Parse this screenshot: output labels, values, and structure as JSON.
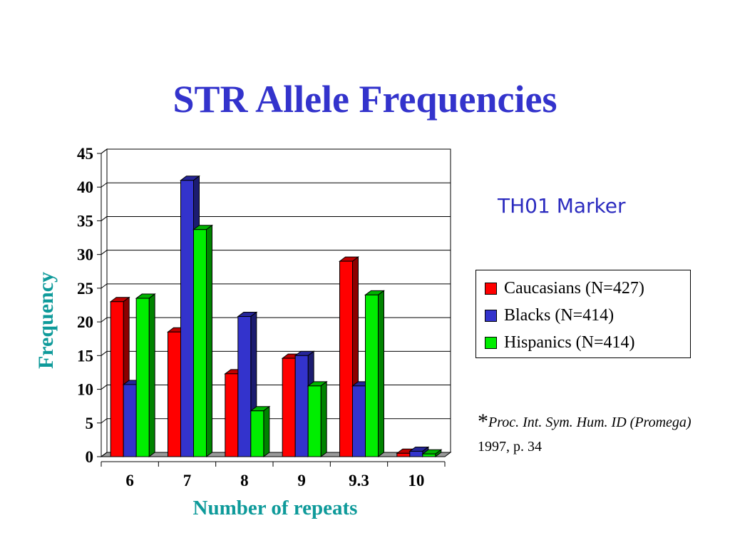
{
  "slide": {
    "title": "STR Allele Frequencies"
  },
  "marker_label": "TH01 Marker",
  "citation": {
    "asterisk": "*",
    "source_italic": "Proc. Int. Sym. Hum. ID (Promega)",
    "source_rest": "1997, p. 34"
  },
  "legend": [
    {
      "label": "Caucasians (N=427)",
      "color": "#ff0000"
    },
    {
      "label": "Blacks (N=414)",
      "color": "#3333cc"
    },
    {
      "label": "Hispanics (N=414)",
      "color": "#00ee00"
    }
  ],
  "chart_data": {
    "type": "bar",
    "title": "",
    "xlabel": "Number of repeats",
    "ylabel": "Frequency",
    "ylim": [
      0,
      45
    ],
    "yticks": [
      0,
      5,
      10,
      15,
      20,
      25,
      30,
      35,
      40,
      45
    ],
    "grid": true,
    "legend_position": "right",
    "categories": [
      "6",
      "7",
      "8",
      "9",
      "9.3",
      "10"
    ],
    "series": [
      {
        "name": "Caucasians (N=427)",
        "color": "#ff0000",
        "values": [
          23,
          18.5,
          12.3,
          14.6,
          29,
          0.5
        ]
      },
      {
        "name": "Blacks (N=414)",
        "color": "#3333cc",
        "values": [
          10.7,
          41,
          20.8,
          15,
          10.5,
          0.8
        ]
      },
      {
        "name": "Hispanics (N=414)",
        "color": "#00ee00",
        "values": [
          23.5,
          33.7,
          6.8,
          10.5,
          24,
          0.4
        ]
      }
    ]
  }
}
